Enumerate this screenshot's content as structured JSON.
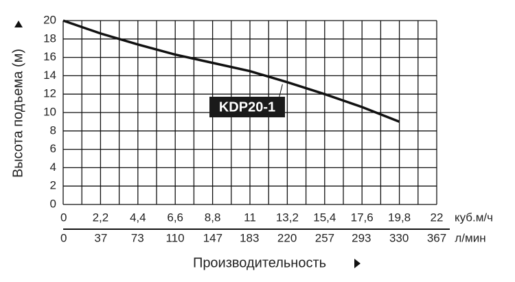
{
  "chart_data": {
    "type": "line",
    "ylabel": "Высота подъема (м)",
    "xlabel": "Производительность",
    "xunit": "куб.м/ч",
    "x2unit": "л/мин",
    "x": [
      0,
      2.2,
      4.4,
      6.6,
      8.8,
      11,
      13.2,
      15.4,
      17.6,
      19.8
    ],
    "series": [
      {
        "name": "KDP20-1",
        "color": "#111111",
        "values": [
          20,
          18.6,
          17.4,
          16.3,
          15.4,
          14.5,
          13.3,
          12.0,
          10.6,
          9.0
        ]
      }
    ],
    "xlim": [
      0,
      22
    ],
    "xticks": [
      0,
      {
        "value": 2.2,
        "label": "2,2"
      },
      {
        "value": 4.4,
        "label": "4,4"
      },
      {
        "value": 6.6,
        "label": "6,6"
      },
      {
        "value": 8.8,
        "label": "8,8"
      },
      11,
      {
        "value": 13.2,
        "label": "13,2"
      },
      {
        "value": 15.4,
        "label": "15,4"
      },
      {
        "value": 17.6,
        "label": "17,6"
      },
      {
        "value": 19.8,
        "label": "19,8"
      },
      22
    ],
    "x2lim": [
      0,
      367
    ],
    "x2ticks": [
      0,
      37,
      73,
      110,
      147,
      183,
      220,
      257,
      293,
      330,
      367
    ],
    "ylim": [
      0,
      20
    ],
    "yticks": [
      0,
      2,
      4,
      6,
      8,
      10,
      12,
      14,
      16,
      18,
      20
    ],
    "grid": true
  }
}
